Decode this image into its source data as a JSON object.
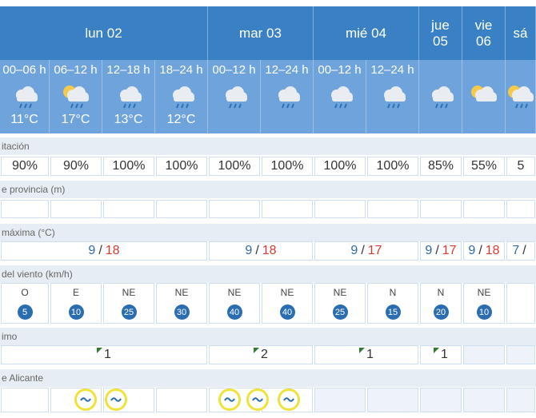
{
  "days": [
    {
      "label": "lun 02"
    },
    {
      "label": "mar 03"
    },
    {
      "label": "mié 04"
    },
    {
      "label": "jue 05"
    },
    {
      "label": "vie 06"
    },
    {
      "label": "sá"
    }
  ],
  "periods": [
    {
      "label": "00–06 h",
      "temp": "11°C"
    },
    {
      "label": "06–12 h",
      "temp": "17°C"
    },
    {
      "label": "12–18 h",
      "temp": "13°C"
    },
    {
      "label": "18–24 h",
      "temp": "12°C"
    },
    {
      "label": "00–12 h"
    },
    {
      "label": "12–24 h"
    },
    {
      "label": "00–12 h"
    },
    {
      "label": "12–24 h"
    }
  ],
  "sections": [
    "itación",
    "e provincia (m)",
    "máxima (°C)",
    "del viento (km/h)",
    "imo",
    "e Alicante"
  ],
  "precipitation": [
    "90%",
    "90%",
    "100%",
    "100%",
    "100%",
    "100%",
    "100%",
    "100%",
    "85%",
    "55%",
    "5"
  ],
  "temp_separator": "/",
  "temperatures": [
    {
      "min": 9,
      "max": 18
    },
    {
      "min": 9,
      "max": 18
    },
    {
      "min": 9,
      "max": 17
    },
    {
      "min": 9,
      "max": 17
    },
    {
      "min": 9,
      "max": 18
    },
    {
      "min": 7
    }
  ],
  "wind": [
    {
      "dir": "O",
      "speed": 5
    },
    {
      "dir": "E",
      "speed": 10
    },
    {
      "dir": "NE",
      "speed": 25
    },
    {
      "dir": "NE",
      "speed": 30
    },
    {
      "dir": "NE",
      "speed": 40
    },
    {
      "dir": "NE",
      "speed": 40
    },
    {
      "dir": "NE",
      "speed": 25
    },
    {
      "dir": "N",
      "speed": 15
    },
    {
      "dir": "N",
      "speed": 20
    },
    {
      "dir": "NE",
      "speed": 10
    }
  ],
  "waves": [
    1,
    2,
    1,
    1
  ]
}
